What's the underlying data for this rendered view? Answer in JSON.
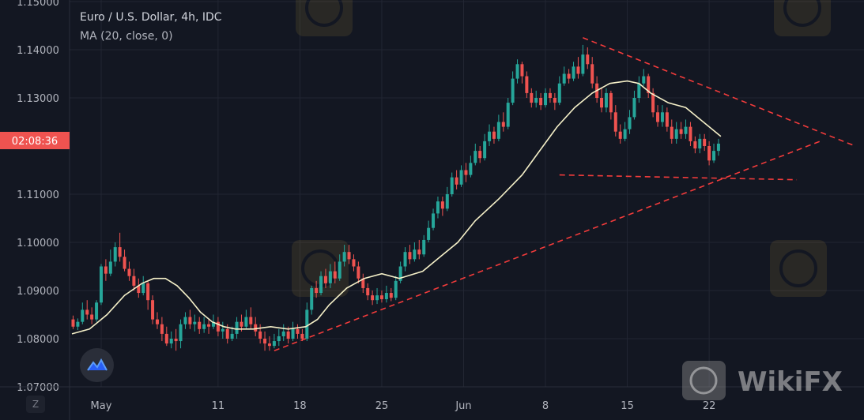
{
  "header": {
    "symbol": "Euro / U.S. Dollar, 4h, IDC",
    "study": "MA (20, close, 0)"
  },
  "price_badge": "02:08:36",
  "timezone_button": "Z",
  "watermark_text": "WikiFX",
  "colors": {
    "background": "#131722",
    "grid": "#222633",
    "up_candle": "#26a69a",
    "down_candle": "#ef5350",
    "ma_line": "#f5f0c8",
    "trendline": "#f23b3b",
    "badge": "#ef5350"
  },
  "chart_data": {
    "type": "candlestick",
    "title": "Euro / U.S. Dollar, 4h, IDC",
    "ylabel": "",
    "ylim": [
      1.07,
      1.15
    ],
    "y_ticks": [
      "1.15000",
      "1.14000",
      "1.13000",
      "1.11000",
      "1.10000",
      "1.09000",
      "1.08000",
      "1.07000"
    ],
    "y_tick_values": [
      1.15,
      1.14,
      1.13,
      1.11,
      1.1,
      1.09,
      1.08,
      1.07
    ],
    "x_ticks": [
      "May",
      "11",
      "18",
      "25",
      "Jun",
      "8",
      "15",
      "22"
    ],
    "x_tick_days": [
      1,
      11,
      18,
      25,
      32,
      39,
      46,
      53
    ],
    "x_range_days": [
      -1.5,
      65.5
    ],
    "grid": true,
    "series": [
      {
        "name": "MA (20, close, 0)",
        "type": "line",
        "points": [
          [
            -1.5,
            1.081
          ],
          [
            0,
            1.082
          ],
          [
            1.5,
            1.085
          ],
          [
            3,
            1.089
          ],
          [
            4.5,
            1.0915
          ],
          [
            5.5,
            1.0925
          ],
          [
            6.5,
            1.0925
          ],
          [
            7.5,
            1.091
          ],
          [
            8.5,
            1.0885
          ],
          [
            9.5,
            1.0855
          ],
          [
            10.5,
            1.0835
          ],
          [
            11.5,
            1.0825
          ],
          [
            12.5,
            1.082
          ],
          [
            14,
            1.082
          ],
          [
            15.5,
            1.0825
          ],
          [
            17,
            1.082
          ],
          [
            18.5,
            1.0825
          ],
          [
            19.5,
            1.084
          ],
          [
            20.5,
            1.087
          ],
          [
            22,
            1.0905
          ],
          [
            23.5,
            1.0925
          ],
          [
            25,
            1.0935
          ],
          [
            26.5,
            1.0925
          ],
          [
            28.5,
            1.094
          ],
          [
            30,
            1.097
          ],
          [
            31.5,
            1.1
          ],
          [
            33,
            1.1045
          ],
          [
            35,
            1.109
          ],
          [
            37,
            1.114
          ],
          [
            38.5,
            1.119
          ],
          [
            40,
            1.124
          ],
          [
            41.5,
            1.128
          ],
          [
            43,
            1.131
          ],
          [
            44.5,
            1.133
          ],
          [
            46,
            1.1335
          ],
          [
            47,
            1.133
          ],
          [
            48,
            1.131
          ],
          [
            49.5,
            1.129
          ],
          [
            51,
            1.128
          ],
          [
            52.5,
            1.125
          ],
          [
            54,
            1.122
          ]
        ]
      }
    ],
    "candles": [
      [
        -1.4,
        1.084,
        1.0825,
        1.0848,
        1.082
      ],
      [
        -1.0,
        1.0825,
        1.0835,
        1.0842,
        1.0818
      ],
      [
        -0.6,
        1.0835,
        1.086,
        1.0875,
        1.083
      ],
      [
        -0.2,
        1.086,
        1.085,
        1.088,
        1.084
      ],
      [
        0.2,
        1.085,
        1.084,
        1.0865,
        1.083
      ],
      [
        0.6,
        1.084,
        1.0875,
        1.088,
        1.0835
      ],
      [
        1.0,
        1.0875,
        1.095,
        1.0955,
        1.087
      ],
      [
        1.4,
        1.095,
        1.0935,
        1.0965,
        1.092
      ],
      [
        1.8,
        1.0935,
        1.096,
        1.0985,
        1.093
      ],
      [
        2.2,
        1.096,
        1.099,
        1.1,
        1.095
      ],
      [
        2.6,
        1.099,
        1.097,
        1.102,
        1.096
      ],
      [
        3.0,
        1.097,
        1.0945,
        1.0985,
        1.094
      ],
      [
        3.4,
        1.0945,
        1.093,
        1.096,
        1.092
      ],
      [
        3.8,
        1.093,
        1.091,
        1.0945,
        1.09
      ],
      [
        4.2,
        1.091,
        1.0895,
        1.0925,
        1.0885
      ],
      [
        4.6,
        1.0895,
        1.0915,
        1.093,
        1.089
      ],
      [
        5.0,
        1.0915,
        1.088,
        1.092,
        1.086
      ],
      [
        5.4,
        1.088,
        1.084,
        1.089,
        1.083
      ],
      [
        5.8,
        1.084,
        1.083,
        1.0855,
        1.082
      ],
      [
        6.2,
        1.083,
        1.081,
        1.0845,
        1.0795
      ],
      [
        6.6,
        1.081,
        1.079,
        1.0825,
        1.0785
      ],
      [
        7.0,
        1.079,
        1.08,
        1.0815,
        1.078
      ],
      [
        7.4,
        1.08,
        1.0795,
        1.082,
        1.0775
      ],
      [
        7.8,
        1.0795,
        1.083,
        1.084,
        1.078
      ],
      [
        8.2,
        1.083,
        1.0845,
        1.0855,
        1.082
      ],
      [
        8.6,
        1.0845,
        1.083,
        1.086,
        1.082
      ],
      [
        9.0,
        1.083,
        1.0835,
        1.085,
        1.0815
      ],
      [
        9.4,
        1.0835,
        1.082,
        1.0845,
        1.081
      ],
      [
        9.8,
        1.082,
        1.083,
        1.0845,
        1.0812
      ],
      [
        10.2,
        1.083,
        1.0825,
        1.084,
        1.081
      ],
      [
        10.6,
        1.0825,
        1.0835,
        1.085,
        1.082
      ],
      [
        11.0,
        1.0835,
        1.0815,
        1.0845,
        1.0805
      ],
      [
        11.4,
        1.0815,
        1.082,
        1.0835,
        1.08
      ],
      [
        11.8,
        1.082,
        1.08,
        1.083,
        1.079
      ],
      [
        12.2,
        1.08,
        1.081,
        1.0825,
        1.0795
      ],
      [
        12.6,
        1.081,
        1.0835,
        1.0845,
        1.08
      ],
      [
        13.0,
        1.0835,
        1.0825,
        1.085,
        1.0815
      ],
      [
        13.4,
        1.0825,
        1.0845,
        1.086,
        1.082
      ],
      [
        13.8,
        1.0845,
        1.083,
        1.0865,
        1.082
      ],
      [
        14.2,
        1.083,
        1.0815,
        1.0845,
        1.0805
      ],
      [
        14.6,
        1.0815,
        1.08,
        1.083,
        1.079
      ],
      [
        15.0,
        1.08,
        1.079,
        1.0815,
        1.0775
      ],
      [
        15.4,
        1.079,
        1.0785,
        1.0805,
        1.0775
      ],
      [
        15.8,
        1.0785,
        1.0795,
        1.081,
        1.078
      ],
      [
        16.2,
        1.0795,
        1.0805,
        1.082,
        1.0785
      ],
      [
        16.6,
        1.0805,
        1.0815,
        1.083,
        1.0795
      ],
      [
        17.0,
        1.0815,
        1.08,
        1.0825,
        1.079
      ],
      [
        17.4,
        1.08,
        1.082,
        1.0835,
        1.0795
      ],
      [
        17.8,
        1.082,
        1.081,
        1.083,
        1.08
      ],
      [
        18.2,
        1.081,
        1.08,
        1.082,
        1.0795
      ],
      [
        18.6,
        1.08,
        1.086,
        1.0875,
        1.0795
      ],
      [
        19.0,
        1.086,
        1.0905,
        1.091,
        1.085
      ],
      [
        19.4,
        1.0905,
        1.0895,
        1.092,
        1.0885
      ],
      [
        19.8,
        1.0895,
        1.093,
        1.094,
        1.089
      ],
      [
        20.2,
        1.093,
        1.0915,
        1.0945,
        1.0905
      ],
      [
        20.6,
        1.0915,
        1.094,
        1.0955,
        1.0905
      ],
      [
        21.0,
        1.094,
        1.0925,
        1.096,
        1.0915
      ],
      [
        21.4,
        1.0925,
        1.096,
        1.0975,
        1.092
      ],
      [
        21.8,
        1.096,
        1.098,
        1.0995,
        1.095
      ],
      [
        22.2,
        1.098,
        1.0965,
        1.0995,
        1.0955
      ],
      [
        22.6,
        1.0965,
        1.095,
        1.0975,
        1.094
      ],
      [
        23.0,
        1.095,
        1.0925,
        1.096,
        1.0915
      ],
      [
        23.4,
        1.0925,
        1.0905,
        1.0935,
        1.0895
      ],
      [
        23.8,
        1.0905,
        1.089,
        1.0915,
        1.088
      ],
      [
        24.2,
        1.089,
        1.088,
        1.09,
        1.087
      ],
      [
        24.6,
        1.088,
        1.089,
        1.0905,
        1.0872
      ],
      [
        25.0,
        1.089,
        1.0882,
        1.09,
        1.0875
      ],
      [
        25.4,
        1.0882,
        1.0895,
        1.091,
        1.0875
      ],
      [
        25.8,
        1.0895,
        1.0885,
        1.0905,
        1.0878
      ],
      [
        26.2,
        1.0885,
        1.092,
        1.093,
        1.088
      ],
      [
        26.6,
        1.092,
        1.095,
        1.096,
        1.0915
      ],
      [
        27.0,
        1.095,
        1.098,
        1.099,
        1.094
      ],
      [
        27.4,
        1.098,
        1.0965,
        1.0995,
        1.0955
      ],
      [
        27.8,
        1.0965,
        1.0985,
        1.1,
        1.096
      ],
      [
        28.2,
        1.0985,
        1.0975,
        1.1005,
        1.0965
      ],
      [
        28.6,
        1.0975,
        1.1005,
        1.1015,
        1.097
      ],
      [
        29.0,
        1.1005,
        1.103,
        1.1045,
        1.1
      ],
      [
        29.4,
        1.103,
        1.106,
        1.107,
        1.1025
      ],
      [
        29.8,
        1.106,
        1.1085,
        1.1095,
        1.105
      ],
      [
        30.2,
        1.1085,
        1.107,
        1.1095,
        1.1055
      ],
      [
        30.6,
        1.107,
        1.11,
        1.1115,
        1.1065
      ],
      [
        31.0,
        1.11,
        1.1135,
        1.1145,
        1.1095
      ],
      [
        31.4,
        1.1135,
        1.112,
        1.115,
        1.111
      ],
      [
        31.8,
        1.112,
        1.115,
        1.116,
        1.1115
      ],
      [
        32.2,
        1.115,
        1.114,
        1.1165,
        1.1125
      ],
      [
        32.6,
        1.114,
        1.1165,
        1.118,
        1.1135
      ],
      [
        33.0,
        1.1165,
        1.119,
        1.1205,
        1.116
      ],
      [
        33.4,
        1.119,
        1.1175,
        1.12,
        1.1165
      ],
      [
        33.8,
        1.1175,
        1.121,
        1.1225,
        1.117
      ],
      [
        34.2,
        1.121,
        1.123,
        1.1245,
        1.12
      ],
      [
        34.6,
        1.123,
        1.1215,
        1.124,
        1.1205
      ],
      [
        35.0,
        1.1215,
        1.125,
        1.1265,
        1.121
      ],
      [
        35.4,
        1.125,
        1.124,
        1.127,
        1.123
      ],
      [
        35.8,
        1.124,
        1.129,
        1.13,
        1.1235
      ],
      [
        36.2,
        1.129,
        1.134,
        1.1355,
        1.1285
      ],
      [
        36.6,
        1.134,
        1.137,
        1.138,
        1.133
      ],
      [
        37.0,
        1.137,
        1.1345,
        1.1375,
        1.133
      ],
      [
        37.4,
        1.1345,
        1.131,
        1.1355,
        1.13
      ],
      [
        37.8,
        1.131,
        1.129,
        1.132,
        1.128
      ],
      [
        38.2,
        1.129,
        1.13,
        1.1315,
        1.128
      ],
      [
        38.6,
        1.13,
        1.1285,
        1.131,
        1.1275
      ],
      [
        39.0,
        1.1285,
        1.131,
        1.132,
        1.128
      ],
      [
        39.4,
        1.131,
        1.13,
        1.132,
        1.129
      ],
      [
        39.8,
        1.13,
        1.129,
        1.131,
        1.1275
      ],
      [
        40.2,
        1.129,
        1.133,
        1.1345,
        1.1285
      ],
      [
        40.6,
        1.133,
        1.135,
        1.1365,
        1.1325
      ],
      [
        41.0,
        1.135,
        1.134,
        1.136,
        1.133
      ],
      [
        41.4,
        1.134,
        1.1365,
        1.1375,
        1.1335
      ],
      [
        41.8,
        1.1365,
        1.135,
        1.1385,
        1.134
      ],
      [
        42.2,
        1.135,
        1.139,
        1.141,
        1.1345
      ],
      [
        42.6,
        1.139,
        1.137,
        1.1405,
        1.136
      ],
      [
        43.0,
        1.137,
        1.133,
        1.1385,
        1.132
      ],
      [
        43.4,
        1.133,
        1.13,
        1.1345,
        1.129
      ],
      [
        43.8,
        1.13,
        1.128,
        1.132,
        1.127
      ],
      [
        44.2,
        1.128,
        1.131,
        1.132,
        1.127
      ],
      [
        44.6,
        1.131,
        1.127,
        1.1315,
        1.1255
      ],
      [
        45.0,
        1.127,
        1.123,
        1.1285,
        1.122
      ],
      [
        45.4,
        1.123,
        1.1215,
        1.1245,
        1.1205
      ],
      [
        45.8,
        1.1215,
        1.1235,
        1.125,
        1.121
      ],
      [
        46.2,
        1.1235,
        1.126,
        1.1275,
        1.1225
      ],
      [
        46.6,
        1.126,
        1.13,
        1.1315,
        1.1255
      ],
      [
        47.0,
        1.13,
        1.133,
        1.1345,
        1.129
      ],
      [
        47.4,
        1.133,
        1.1345,
        1.136,
        1.1325
      ],
      [
        47.8,
        1.1345,
        1.131,
        1.135,
        1.13
      ],
      [
        48.2,
        1.131,
        1.127,
        1.132,
        1.126
      ],
      [
        48.6,
        1.127,
        1.125,
        1.1285,
        1.124
      ],
      [
        49.0,
        1.125,
        1.127,
        1.1285,
        1.124
      ],
      [
        49.4,
        1.127,
        1.124,
        1.128,
        1.123
      ],
      [
        49.8,
        1.124,
        1.1215,
        1.1255,
        1.1205
      ],
      [
        50.2,
        1.1215,
        1.1235,
        1.125,
        1.1205
      ],
      [
        50.6,
        1.1235,
        1.1225,
        1.125,
        1.1215
      ],
      [
        51.0,
        1.1225,
        1.124,
        1.1255,
        1.1215
      ],
      [
        51.4,
        1.124,
        1.121,
        1.125,
        1.12
      ],
      [
        51.8,
        1.121,
        1.1195,
        1.122,
        1.1185
      ],
      [
        52.2,
        1.1195,
        1.1215,
        1.1225,
        1.1185
      ],
      [
        52.6,
        1.1215,
        1.12,
        1.1225,
        1.119
      ],
      [
        53.0,
        1.12,
        1.117,
        1.121,
        1.116
      ],
      [
        53.4,
        1.117,
        1.119,
        1.1205,
        1.1165
      ],
      [
        53.8,
        1.119,
        1.1205,
        1.1215,
        1.118
      ]
    ],
    "trendlines": [
      {
        "name": "upper-resistance",
        "points": [
          [
            42.2,
            1.1425
          ],
          [
            65.5,
            1.12
          ]
        ]
      },
      {
        "name": "flag-lower",
        "points": [
          [
            40.2,
            1.114
          ],
          [
            60.5,
            1.113
          ]
        ]
      },
      {
        "name": "support",
        "points": [
          [
            15.8,
            1.0775
          ],
          [
            62.5,
            1.121
          ]
        ]
      }
    ]
  }
}
